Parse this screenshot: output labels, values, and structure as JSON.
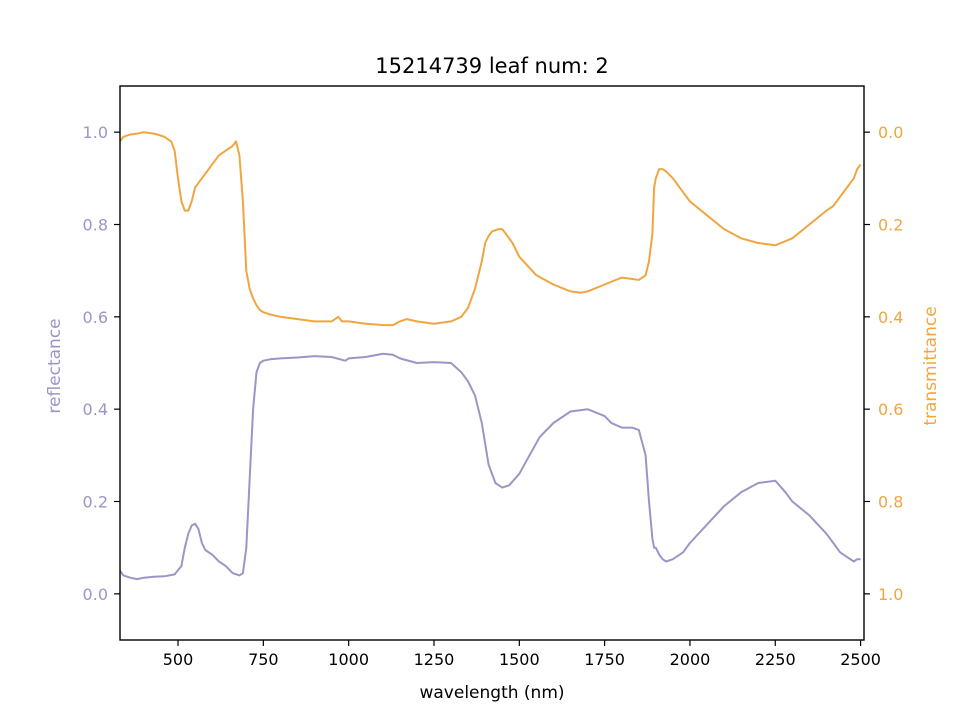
{
  "chart_data": {
    "type": "line",
    "title": "15214739 leaf num: 2",
    "xlabel": "wavelength (nm)",
    "ylabel_left": "reflectance",
    "ylabel_right": "transmittance",
    "xlim": [
      330,
      2510
    ],
    "ylim_left": [
      -0.1,
      1.1
    ],
    "ylim_right_inverted": [
      1.1,
      -0.1
    ],
    "x_ticks": [
      500,
      750,
      1000,
      1250,
      1500,
      1750,
      2000,
      2250,
      2500
    ],
    "y_ticks_left": [
      0.0,
      0.2,
      0.4,
      0.6,
      0.8,
      1.0
    ],
    "y_ticks_right": [
      0.0,
      0.2,
      0.4,
      0.6,
      0.8,
      1.0
    ],
    "x_tick_labels": [
      "500",
      "750",
      "1000",
      "1250",
      "1500",
      "1750",
      "2000",
      "2250",
      "2500"
    ],
    "y_tick_labels_left": [
      "0.0",
      "0.2",
      "0.4",
      "0.6",
      "0.8",
      "1.0"
    ],
    "y_tick_labels_right": [
      "0.0",
      "0.2",
      "0.4",
      "0.6",
      "0.8",
      "1.0"
    ],
    "colors": {
      "reflectance": "#9a96c8",
      "transmittance": "#f0a640",
      "axes": "#000000"
    },
    "grid": false,
    "series": [
      {
        "name": "reflectance",
        "axis": "left",
        "x": [
          330,
          340,
          360,
          380,
          400,
          430,
          460,
          490,
          510,
          520,
          530,
          540,
          550,
          560,
          570,
          580,
          590,
          600,
          620,
          640,
          660,
          680,
          690,
          700,
          710,
          720,
          730,
          740,
          750,
          770,
          800,
          850,
          900,
          950,
          990,
          1000,
          1050,
          1100,
          1130,
          1150,
          1200,
          1250,
          1300,
          1330,
          1350,
          1370,
          1390,
          1410,
          1430,
          1450,
          1470,
          1500,
          1530,
          1560,
          1600,
          1650,
          1700,
          1750,
          1770,
          1800,
          1830,
          1850,
          1870,
          1880,
          1890,
          1895,
          1900,
          1910,
          1920,
          1930,
          1950,
          1980,
          2000,
          2050,
          2100,
          2150,
          2200,
          2250,
          2280,
          2300,
          2350,
          2400,
          2420,
          2440,
          2460,
          2480,
          2490,
          2500
        ],
        "y": [
          0.05,
          0.04,
          0.035,
          0.032,
          0.035,
          0.037,
          0.038,
          0.042,
          0.06,
          0.1,
          0.13,
          0.148,
          0.152,
          0.14,
          0.11,
          0.095,
          0.09,
          0.085,
          0.07,
          0.06,
          0.045,
          0.04,
          0.045,
          0.1,
          0.25,
          0.4,
          0.48,
          0.5,
          0.505,
          0.508,
          0.51,
          0.512,
          0.515,
          0.513,
          0.505,
          0.51,
          0.513,
          0.52,
          0.518,
          0.51,
          0.5,
          0.502,
          0.5,
          0.48,
          0.46,
          0.43,
          0.37,
          0.28,
          0.24,
          0.23,
          0.235,
          0.26,
          0.3,
          0.34,
          0.37,
          0.395,
          0.4,
          0.385,
          0.37,
          0.36,
          0.36,
          0.355,
          0.3,
          0.2,
          0.12,
          0.1,
          0.1,
          0.085,
          0.075,
          0.07,
          0.075,
          0.09,
          0.11,
          0.15,
          0.19,
          0.22,
          0.24,
          0.245,
          0.22,
          0.2,
          0.17,
          0.13,
          0.11,
          0.09,
          0.08,
          0.07,
          0.075,
          0.075
        ]
      },
      {
        "name": "transmittance",
        "axis": "right",
        "x": [
          330,
          340,
          360,
          380,
          400,
          420,
          440,
          460,
          480,
          490,
          500,
          510,
          520,
          530,
          540,
          550,
          560,
          570,
          580,
          600,
          620,
          640,
          660,
          670,
          680,
          690,
          700,
          710,
          720,
          730,
          740,
          750,
          770,
          800,
          850,
          900,
          950,
          970,
          980,
          1000,
          1050,
          1100,
          1130,
          1150,
          1170,
          1200,
          1250,
          1300,
          1330,
          1350,
          1370,
          1390,
          1400,
          1410,
          1420,
          1440,
          1450,
          1460,
          1480,
          1500,
          1550,
          1600,
          1650,
          1680,
          1700,
          1750,
          1800,
          1850,
          1870,
          1880,
          1890,
          1895,
          1900,
          1905,
          1910,
          1920,
          1930,
          1950,
          1980,
          2000,
          2050,
          2100,
          2150,
          2200,
          2250,
          2300,
          2350,
          2400,
          2420,
          2440,
          2460,
          2480,
          2490,
          2500
        ],
        "y": [
          0.02,
          0.01,
          0.005,
          0.003,
          0.0,
          0.002,
          0.005,
          0.01,
          0.02,
          0.04,
          0.1,
          0.15,
          0.17,
          0.17,
          0.15,
          0.12,
          0.11,
          0.1,
          0.09,
          0.07,
          0.05,
          0.04,
          0.03,
          0.02,
          0.05,
          0.15,
          0.3,
          0.34,
          0.36,
          0.375,
          0.385,
          0.39,
          0.395,
          0.4,
          0.405,
          0.41,
          0.41,
          0.4,
          0.41,
          0.41,
          0.415,
          0.418,
          0.418,
          0.41,
          0.405,
          0.41,
          0.415,
          0.41,
          0.4,
          0.38,
          0.34,
          0.28,
          0.24,
          0.225,
          0.215,
          0.21,
          0.21,
          0.22,
          0.24,
          0.27,
          0.31,
          0.33,
          0.345,
          0.348,
          0.345,
          0.33,
          0.315,
          0.32,
          0.31,
          0.28,
          0.22,
          0.12,
          0.1,
          0.09,
          0.08,
          0.08,
          0.085,
          0.1,
          0.13,
          0.15,
          0.18,
          0.21,
          0.23,
          0.24,
          0.245,
          0.23,
          0.2,
          0.17,
          0.16,
          0.14,
          0.12,
          0.1,
          0.08,
          0.07
        ]
      }
    ]
  }
}
